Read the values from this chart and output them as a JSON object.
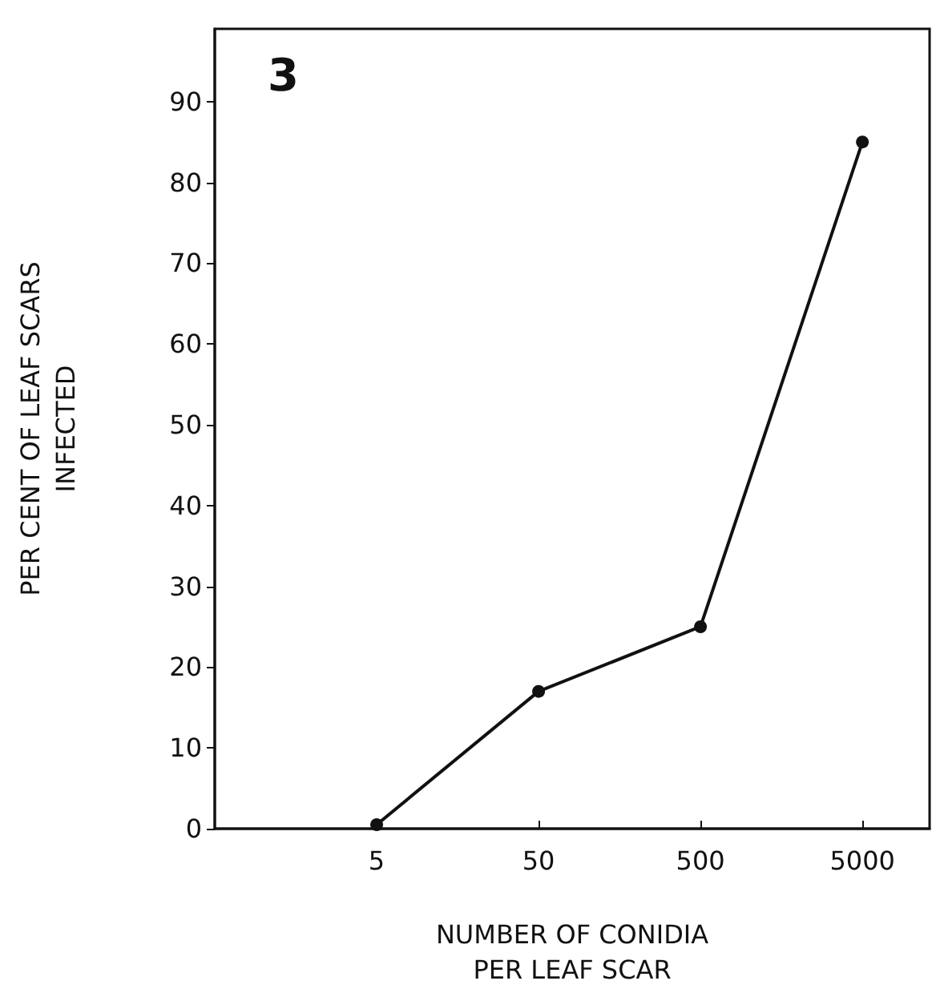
{
  "chart_data": {
    "type": "line",
    "title": "3",
    "xlabel": "NUMBER OF CONIDIA\nPER LEAF SCAR",
    "ylabel": "PER CENT OF LEAF SCARS\nINFECTED",
    "x": [
      5,
      50,
      500,
      5000
    ],
    "series": [
      {
        "color": "#111111",
        "values": [
          0.5,
          17,
          25,
          85
        ]
      }
    ],
    "log": "x",
    "xlim": [
      0.5,
      13000
    ],
    "xticks": [
      5,
      50,
      500,
      5000
    ],
    "ylim": [
      0,
      99
    ],
    "yticks": [
      0,
      10,
      20,
      30,
      40,
      50,
      60,
      70,
      80,
      90
    ],
    "grid": false,
    "marker": "circle",
    "line_style": "solid"
  }
}
